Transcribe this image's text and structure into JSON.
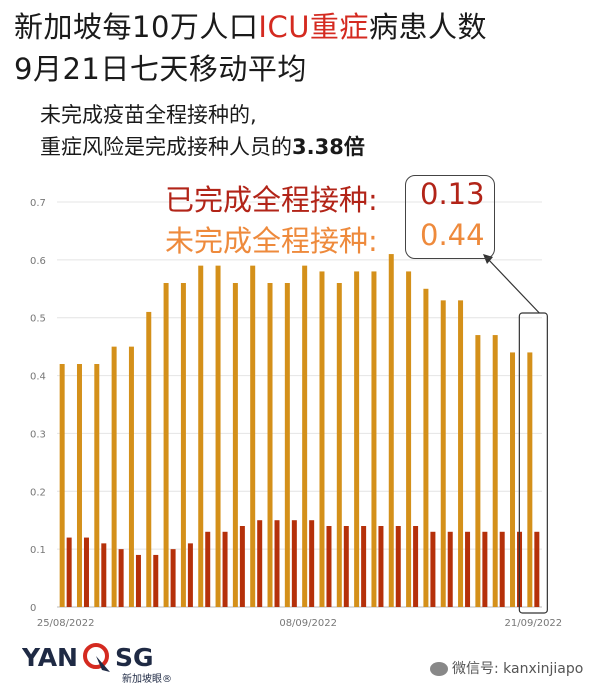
{
  "title": {
    "part1": "新加坡每10万人口",
    "part2": "ICU重症",
    "part3": "病患人数",
    "line2": "9月21日七天移动平均"
  },
  "subtitle": {
    "line1": "未完成疫苗全程接种的,",
    "line2_prefix": "重症风险是完成接种人员的",
    "line2_bold": "3.38倍"
  },
  "legend": {
    "vaccinated_label": "已完成全程接种:",
    "vaccinated_value": "0.13",
    "unvaccinated_label": "未完成全程接种:",
    "unvaccinated_value": "0.44"
  },
  "colors": {
    "vaccinated": "#b5300a",
    "unvaccinated": "#d4901a",
    "vaccinated_text": "#b22418",
    "unvaccinated_text": "#ee8a3c",
    "title_red": "#d42a20"
  },
  "chart_data": {
    "type": "bar",
    "ylim": [
      0,
      0.7
    ],
    "yticks": [
      "0",
      "0.1",
      "0.2",
      "0.3",
      "0.4",
      "0.5",
      "0.6",
      "0.7"
    ],
    "x_tick_labels": [
      {
        "index": 0,
        "label": "25/08/2022"
      },
      {
        "index": 14,
        "label": "08/09/2022"
      },
      {
        "index": 27,
        "label": "21/09/2022"
      }
    ],
    "series": [
      {
        "key": "unvaccinated",
        "values": [
          0.42,
          0.42,
          0.42,
          0.45,
          0.45,
          0.51,
          0.56,
          0.56,
          0.59,
          0.59,
          0.56,
          0.59,
          0.56,
          0.56,
          0.59,
          0.58,
          0.56,
          0.58,
          0.58,
          0.61,
          0.58,
          0.55,
          0.53,
          0.53,
          0.47,
          0.47,
          0.44,
          0.44
        ]
      },
      {
        "key": "vaccinated",
        "values": [
          0.12,
          0.12,
          0.11,
          0.1,
          0.09,
          0.09,
          0.1,
          0.11,
          0.13,
          0.13,
          0.14,
          0.15,
          0.15,
          0.15,
          0.15,
          0.14,
          0.14,
          0.14,
          0.14,
          0.14,
          0.14,
          0.13,
          0.13,
          0.13,
          0.13,
          0.13,
          0.13,
          0.13
        ]
      }
    ]
  },
  "brand": {
    "logo_left": "YAN",
    "logo_right": "SG",
    "logo_sub": "新加坡眼®"
  },
  "watermark": "微信号: kanxinjiapo"
}
